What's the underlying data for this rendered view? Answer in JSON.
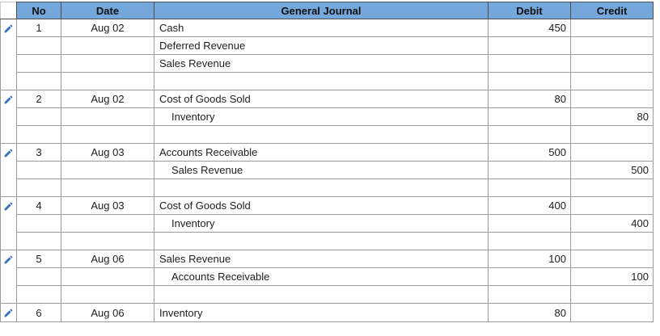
{
  "colors": {
    "header_bg": "#74a8dc",
    "icon_color": "#3a72b8",
    "border": "#9b9b9b",
    "text": "#1e1e1e"
  },
  "table": {
    "columns": [
      "No",
      "Date",
      "General Journal",
      "Debit",
      "Credit"
    ],
    "edit_icon": "pencil-icon",
    "entries": [
      {
        "no": "1",
        "date": "Aug 02",
        "blank_row_after": true,
        "truncated": false,
        "lines": [
          {
            "account": "Cash",
            "indent": false,
            "debit": "450",
            "credit": ""
          },
          {
            "account": "Deferred Revenue",
            "indent": false,
            "debit": "",
            "credit": ""
          },
          {
            "account": "Sales Revenue",
            "indent": false,
            "debit": "",
            "credit": ""
          }
        ]
      },
      {
        "no": "2",
        "date": "Aug 02",
        "blank_row_after": true,
        "truncated": false,
        "lines": [
          {
            "account": "Cost of Goods Sold",
            "indent": false,
            "debit": "80",
            "credit": ""
          },
          {
            "account": "Inventory",
            "indent": true,
            "debit": "",
            "credit": "80"
          }
        ]
      },
      {
        "no": "3",
        "date": "Aug 03",
        "blank_row_after": true,
        "truncated": false,
        "lines": [
          {
            "account": "Accounts Receivable",
            "indent": false,
            "debit": "500",
            "credit": ""
          },
          {
            "account": "Sales Revenue",
            "indent": true,
            "debit": "",
            "credit": "500"
          }
        ]
      },
      {
        "no": "4",
        "date": "Aug 03",
        "blank_row_after": true,
        "truncated": false,
        "lines": [
          {
            "account": "Cost of Goods Sold",
            "indent": false,
            "debit": "400",
            "credit": ""
          },
          {
            "account": "Inventory",
            "indent": true,
            "debit": "",
            "credit": "400"
          }
        ]
      },
      {
        "no": "5",
        "date": "Aug 06",
        "blank_row_after": true,
        "truncated": false,
        "lines": [
          {
            "account": "Sales Revenue",
            "indent": false,
            "debit": "100",
            "credit": ""
          },
          {
            "account": "Accounts Receivable",
            "indent": true,
            "debit": "",
            "credit": "100"
          }
        ]
      },
      {
        "no": "6",
        "date": "Aug 06",
        "blank_row_after": false,
        "truncated": true,
        "lines": [
          {
            "account": "Inventory",
            "indent": false,
            "debit": "80",
            "credit": ""
          }
        ]
      }
    ]
  }
}
